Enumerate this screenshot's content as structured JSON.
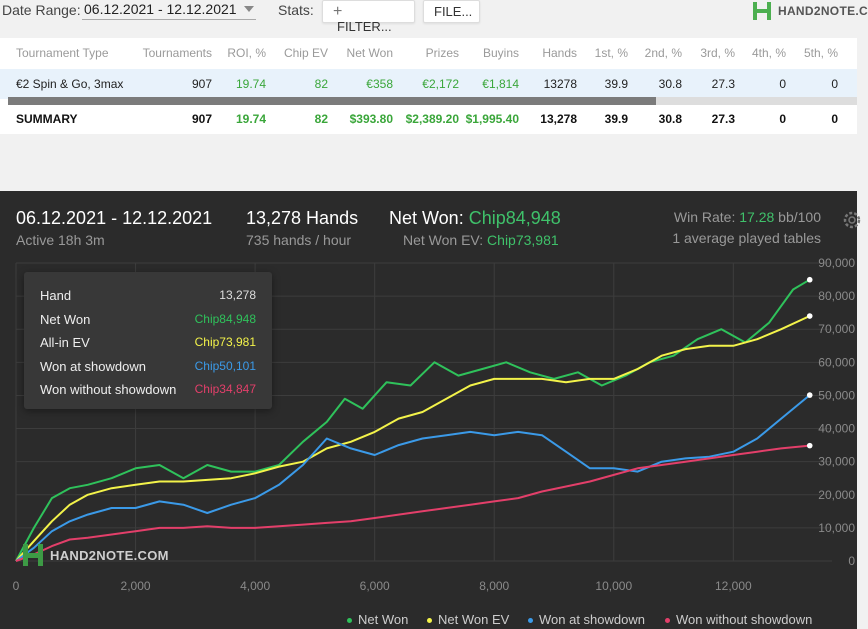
{
  "toolbar": {
    "date_range_label": "Date Range:",
    "date_range_value": "06.12.2021 - 12.12.2021",
    "stats_label": "Stats:",
    "filter_button": "FILTER...",
    "file_button": "FILE...",
    "logo_text": "HAND2NOTE.C"
  },
  "table": {
    "headers": [
      "Tournament Type",
      "Tournaments",
      "ROI, %",
      "Chip EV",
      "Net Won",
      "Prizes",
      "Buyins",
      "Hands",
      "1st, %",
      "2nd, %",
      "3rd, %",
      "4th, %",
      "5th, %"
    ],
    "rows": [
      [
        "€2 Spin & Go, 3max",
        "907",
        "19.74",
        "82",
        "€358",
        "€2,172",
        "€1,814",
        "13278",
        "39.9",
        "30.8",
        "27.3",
        "0",
        "0"
      ]
    ],
    "summary": [
      "SUMMARY",
      "907",
      "19.74",
      "82",
      "$393.80",
      "$2,389.20",
      "$1,995.40",
      "13,278",
      "39.9",
      "30.8",
      "27.3",
      "0",
      "0"
    ]
  },
  "panel": {
    "date_range": "06.12.2021 - 12.12.2021",
    "active": "Active 18h 3m",
    "hands": "13,278 Hands",
    "hands_per_hour": "735 hands / hour",
    "net_won_label": "Net Won:",
    "net_won_value": "Chip84,948",
    "net_won_ev_label": "Net Won  EV:",
    "net_won_ev_value": "Chip73,981",
    "win_rate_label": "Win Rate:",
    "win_rate_value": "17.28",
    "win_rate_unit": "bb/100",
    "tables": "1 average played tables",
    "watermark": "HAND2NOTE.COM"
  },
  "tooltip": {
    "rows": [
      {
        "label": "Hand",
        "value": "13,278",
        "color": "#dddddd"
      },
      {
        "label": "Net Won",
        "value": "Chip84,948",
        "color": "#2fc25b"
      },
      {
        "label": "All-in EV",
        "value": "Chip73,981",
        "color": "#f3f34a"
      },
      {
        "label": "Won at showdown",
        "value": "Chip50,101",
        "color": "#3b9ae8"
      },
      {
        "label": "Won without showdown",
        "value": "Chip34,847",
        "color": "#e33f6a"
      }
    ]
  },
  "colors": {
    "net_won": "#2fc25b",
    "ev": "#f3f34a",
    "showdown": "#3b9ae8",
    "non_showdown": "#e33f6a"
  },
  "chart_data": {
    "type": "line",
    "xlabel": "",
    "ylabel": "",
    "xlim": [
      0,
      13500
    ],
    "ylim": [
      0,
      90000
    ],
    "x_ticks": [
      0,
      2000,
      4000,
      6000,
      8000,
      10000,
      12000
    ],
    "x_tick_labels": [
      "0",
      "2,000",
      "4,000",
      "6,000",
      "8,000",
      "10,000",
      "12,000"
    ],
    "y_ticks": [
      0,
      10000,
      20000,
      30000,
      40000,
      50000,
      60000,
      70000,
      80000,
      90000
    ],
    "y_tick_labels": [
      "0",
      "10,000",
      "20,000",
      "30,000",
      "40,000",
      "50,000",
      "60,000",
      "70,000",
      "80,000",
      "90,000"
    ],
    "grid": true,
    "legend_position": "bottom-right",
    "series": [
      {
        "name": "Net Won",
        "color": "#2fc25b",
        "x": [
          0,
          300,
          600,
          900,
          1200,
          1600,
          2000,
          2400,
          2800,
          3200,
          3600,
          4000,
          4400,
          4800,
          5200,
          5500,
          5800,
          6200,
          6600,
          7000,
          7400,
          7800,
          8200,
          8600,
          9000,
          9400,
          9800,
          10200,
          10600,
          11000,
          11400,
          11800,
          12200,
          12600,
          13000,
          13278
        ],
        "y": [
          0,
          10000,
          19000,
          22000,
          23000,
          25000,
          28000,
          29000,
          25000,
          29000,
          27000,
          27000,
          29000,
          36000,
          42000,
          49000,
          46000,
          54000,
          53000,
          60000,
          56000,
          58000,
          60000,
          57000,
          55000,
          57000,
          53000,
          56000,
          60000,
          62000,
          67000,
          70000,
          66000,
          72000,
          82000,
          84948
        ]
      },
      {
        "name": "Net Won  EV",
        "color": "#f3f34a",
        "x": [
          0,
          300,
          600,
          900,
          1200,
          1600,
          2000,
          2400,
          2800,
          3200,
          3600,
          4000,
          4400,
          4800,
          5200,
          5600,
          6000,
          6400,
          6800,
          7200,
          7600,
          8000,
          8400,
          8800,
          9200,
          9600,
          10000,
          10400,
          10800,
          11200,
          11600,
          12000,
          12400,
          12800,
          13278
        ],
        "y": [
          0,
          6000,
          12000,
          17000,
          20000,
          22000,
          23000,
          24000,
          24000,
          24500,
          25000,
          26500,
          28500,
          30000,
          34000,
          36000,
          39000,
          43000,
          45000,
          49000,
          53000,
          55000,
          55000,
          55000,
          54000,
          55000,
          55000,
          58000,
          62000,
          64000,
          65000,
          65000,
          67000,
          70000,
          73981
        ]
      },
      {
        "name": "Won at showdown",
        "color": "#3b9ae8",
        "x": [
          0,
          300,
          600,
          900,
          1200,
          1600,
          2000,
          2400,
          2800,
          3200,
          3600,
          4000,
          4400,
          4800,
          5200,
          5600,
          6000,
          6400,
          6800,
          7200,
          7600,
          8000,
          8400,
          8800,
          9200,
          9600,
          10000,
          10400,
          10800,
          11200,
          11600,
          12000,
          12400,
          12800,
          13278
        ],
        "y": [
          0,
          4000,
          9000,
          12000,
          14000,
          16000,
          16000,
          18000,
          17000,
          14500,
          17000,
          19000,
          23000,
          29000,
          37000,
          34000,
          32000,
          35000,
          37000,
          38000,
          39000,
          38000,
          39000,
          38000,
          33000,
          28000,
          28000,
          27000,
          30000,
          31000,
          31500,
          33000,
          37000,
          43000,
          50101
        ]
      },
      {
        "name": "Won without showdown",
        "color": "#e33f6a",
        "x": [
          0,
          300,
          600,
          900,
          1200,
          1600,
          2000,
          2400,
          2800,
          3200,
          3600,
          4000,
          4400,
          4800,
          5200,
          5600,
          6000,
          6400,
          6800,
          7200,
          7600,
          8000,
          8400,
          8800,
          9200,
          9600,
          10000,
          10400,
          10800,
          11200,
          11600,
          12000,
          12400,
          12800,
          13278
        ],
        "y": [
          0,
          2000,
          4500,
          6500,
          7000,
          8000,
          9000,
          10000,
          10000,
          10500,
          10000,
          10000,
          10500,
          11000,
          11500,
          12000,
          13000,
          14000,
          15000,
          16000,
          17000,
          18000,
          19000,
          21000,
          22500,
          24000,
          26000,
          28000,
          29000,
          30000,
          31000,
          32000,
          33000,
          34000,
          34847
        ]
      }
    ]
  }
}
